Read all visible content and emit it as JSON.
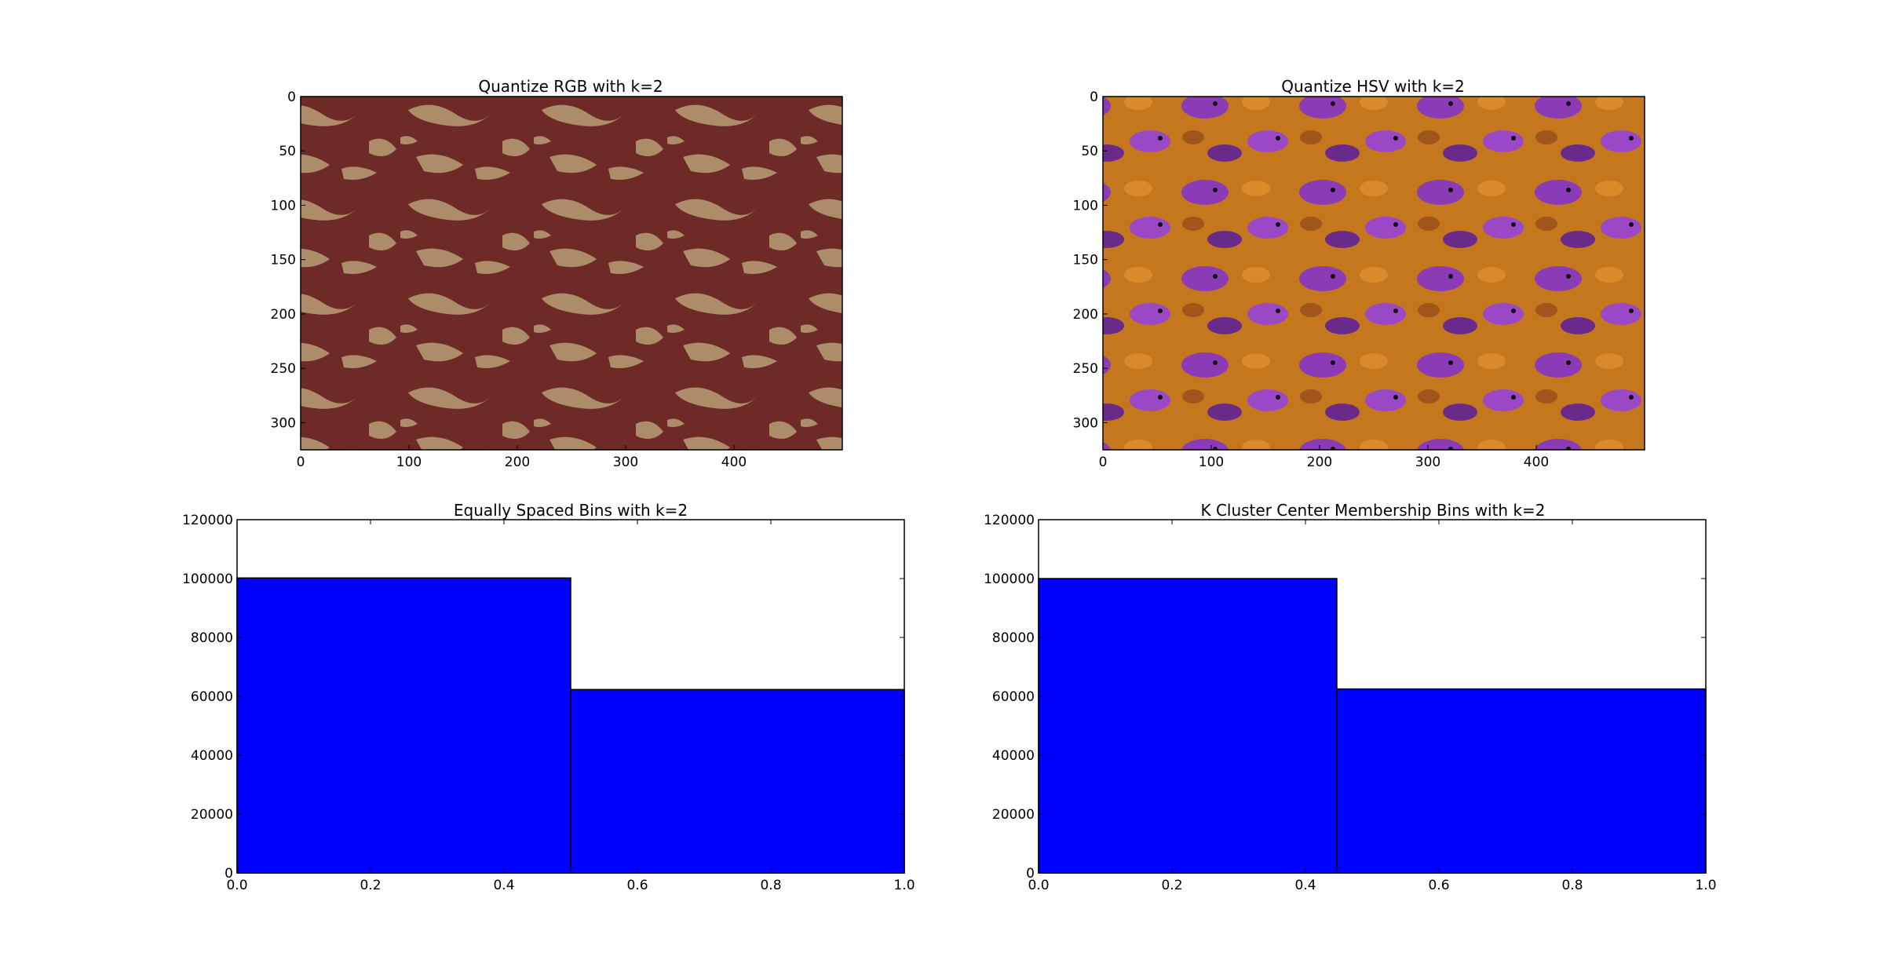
{
  "figure": {
    "background": "#ffffff",
    "panels": [
      {
        "kind": "image",
        "title": "Quantize RGB with k=2",
        "image_description_colors": [
          "#6e2a27",
          "#ad8c69"
        ],
        "x_ticks": [
          "0",
          "100",
          "200",
          "300",
          "400"
        ],
        "y_ticks": [
          "0",
          "50",
          "100",
          "150",
          "200",
          "250",
          "300"
        ],
        "xlim": [
          0,
          500
        ],
        "ylim": [
          325,
          0
        ]
      },
      {
        "kind": "image",
        "title": "Quantize HSV with k=2",
        "image_description_colors": [
          "#c5771d",
          "#8b3bb6"
        ],
        "x_ticks": [
          "0",
          "100",
          "200",
          "300",
          "400"
        ],
        "y_ticks": [
          "0",
          "50",
          "100",
          "150",
          "200",
          "250",
          "300"
        ],
        "xlim": [
          0,
          500
        ],
        "ylim": [
          325,
          0
        ]
      }
    ]
  },
  "chart_data": [
    {
      "type": "bar",
      "title": "Equally Spaced Bins with k=2",
      "bins": [
        [
          0.0,
          0.5
        ],
        [
          0.5,
          1.0
        ]
      ],
      "values": [
        100200,
        62300
      ],
      "xlim": [
        0.0,
        1.0
      ],
      "ylim": [
        0,
        120000
      ],
      "x_ticks": [
        "0.0",
        "0.2",
        "0.4",
        "0.6",
        "0.8",
        "1.0"
      ],
      "y_ticks": [
        "0",
        "20000",
        "40000",
        "60000",
        "80000",
        "100000",
        "120000"
      ],
      "bar_color": "#0000ff",
      "grid": false
    },
    {
      "type": "bar",
      "title": "K Cluster Center Membership Bins with k=2",
      "bins": [
        [
          0.0,
          0.447
        ],
        [
          0.447,
          1.0
        ]
      ],
      "values": [
        100000,
        62500
      ],
      "xlim": [
        0.0,
        1.0
      ],
      "ylim": [
        0,
        120000
      ],
      "x_ticks": [
        "0.0",
        "0.2",
        "0.4",
        "0.6",
        "0.8",
        "1.0"
      ],
      "y_ticks": [
        "0",
        "20000",
        "40000",
        "60000",
        "80000",
        "100000",
        "120000"
      ],
      "bar_color": "#0000ff",
      "grid": false
    }
  ]
}
